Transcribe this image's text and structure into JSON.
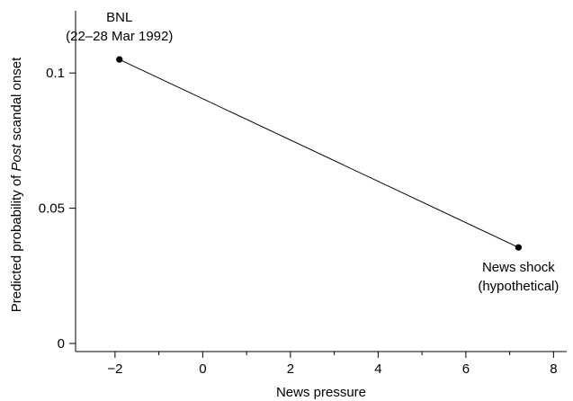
{
  "chart_data": {
    "type": "line",
    "title": "",
    "xlabel": "News pressure",
    "ylabel_parts": [
      "Predicted probability of ",
      "Post",
      " scandal onset"
    ],
    "xlim": [
      -2.9,
      8.3
    ],
    "ylim": [
      -0.003,
      0.123
    ],
    "x_ticks": [
      -2,
      0,
      2,
      4,
      6,
      8
    ],
    "x_tick_labels": [
      "−2",
      "0",
      "2",
      "4",
      "6",
      "8"
    ],
    "x_minor_ticks": [
      -1,
      1,
      3,
      5,
      7
    ],
    "y_ticks": [
      0,
      0.05,
      0.1
    ],
    "y_tick_labels": [
      "0",
      "0.05",
      "0.1"
    ],
    "grid": false,
    "series": [
      {
        "points": [
          {
            "x": -1.9,
            "y": 0.105
          },
          {
            "x": 7.2,
            "y": 0.0355
          }
        ]
      }
    ],
    "annotations": [
      {
        "lines": [
          "BNL",
          "(22–28 Mar 1992)"
        ],
        "x": -1.9,
        "y": 0.105
      },
      {
        "lines": [
          "News shock",
          "(hypothetical)"
        ],
        "x": 7.2,
        "y": 0.0355
      }
    ]
  }
}
